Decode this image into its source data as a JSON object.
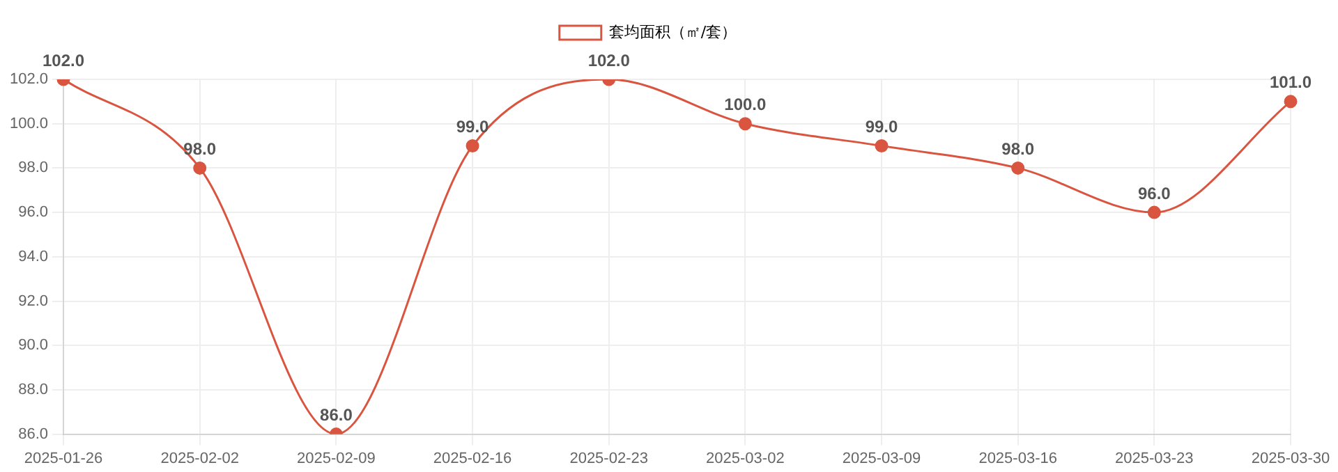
{
  "chart_data": {
    "type": "line",
    "categories": [
      "2025-01-26",
      "2025-02-02",
      "2025-02-09",
      "2025-02-16",
      "2025-02-23",
      "2025-03-02",
      "2025-03-09",
      "2025-03-16",
      "2025-03-23",
      "2025-03-30"
    ],
    "series": [
      {
        "name": "套均面积（㎡/套）",
        "color": "#d9553f",
        "values": [
          102,
          98,
          86,
          99,
          102,
          100,
          99,
          98,
          96,
          101
        ],
        "value_labels": [
          "102.0",
          "98.0",
          "86.0",
          "99.0",
          "102.0",
          "100.0",
          "99.0",
          "98.0",
          "96.0",
          "101.0"
        ]
      }
    ],
    "ylim": [
      86,
      102
    ],
    "yticks": [
      {
        "value": 86,
        "label": "86.0"
      },
      {
        "value": 88,
        "label": "88.0"
      },
      {
        "value": 90,
        "label": "90.0"
      },
      {
        "value": 92,
        "label": "92.0"
      },
      {
        "value": 94,
        "label": "94.0"
      },
      {
        "value": 96,
        "label": "96.0"
      },
      {
        "value": 98,
        "label": "98.0"
      },
      {
        "value": 100,
        "label": "100.0"
      },
      {
        "value": 102,
        "label": "102.0"
      }
    ],
    "grid": true,
    "legend": "top",
    "marker": "circle",
    "line_style": "solid"
  }
}
